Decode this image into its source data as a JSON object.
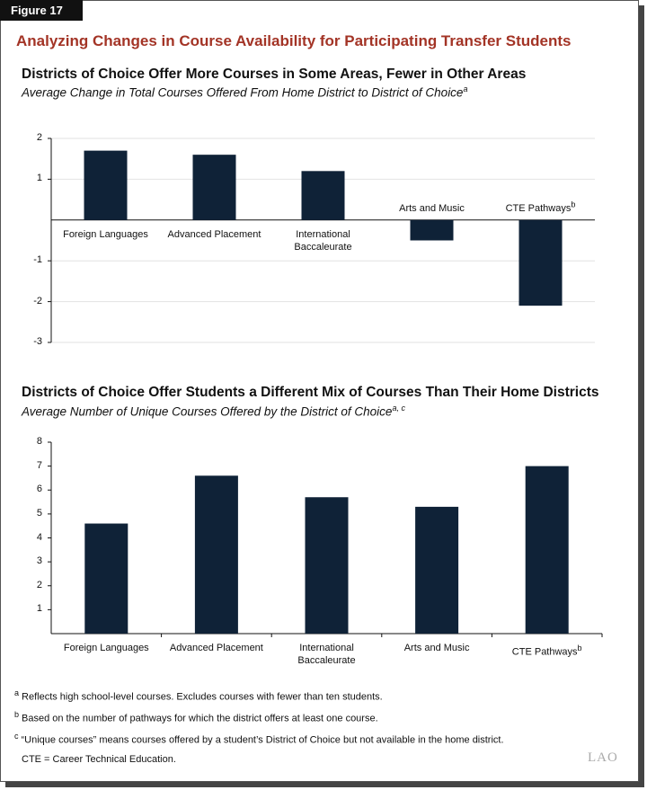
{
  "figure_label": "Figure 17",
  "title": "Analyzing Changes in Course Availability for Participating Transfer Students",
  "chart_data": [
    {
      "type": "bar",
      "title": "Districts of Choice Offer More Courses in Some Areas, Fewer in Other Areas",
      "subtitle": "Average Change in Total Courses Offered From Home District to District of Choice",
      "subtitle_note": "a",
      "categories": [
        "Foreign Languages",
        "Advanced Placement",
        "International Baccaleurate",
        "Arts and Music",
        "CTE Pathways"
      ],
      "category_notes": [
        null,
        null,
        null,
        null,
        "b"
      ],
      "values": [
        1.7,
        1.6,
        1.2,
        -0.5,
        -2.1
      ],
      "color": "#0f2237",
      "ylim": [
        -3,
        2
      ],
      "yticks": [
        -3,
        -2,
        -1,
        1,
        2
      ],
      "grid": true
    },
    {
      "type": "bar",
      "title": "Districts of Choice Offer Students a Different Mix of Courses Than Their Home Districts",
      "subtitle": "Average Number of Unique Courses Offered by the District of Choice",
      "subtitle_note": "a, c",
      "categories": [
        "Foreign Languages",
        "Advanced Placement",
        "International Baccaleurate",
        "Arts and Music",
        "CTE Pathways"
      ],
      "category_notes": [
        null,
        null,
        null,
        null,
        "b"
      ],
      "values": [
        4.6,
        6.6,
        5.7,
        5.3,
        7.0
      ],
      "color": "#0f2237",
      "ylim": [
        0,
        8
      ],
      "yticks": [
        1,
        2,
        3,
        4,
        5,
        6,
        7,
        8
      ],
      "grid": false
    }
  ],
  "footnotes": [
    {
      "marker": "a",
      "text": "Reflects high school-level courses. Excludes courses with fewer than ten students."
    },
    {
      "marker": "b",
      "text": "Based on the number of pathways for which the district offers at least one course."
    },
    {
      "marker": "c",
      "text": "“Unique courses” means courses offered by a student’s District of Choice but not available in the home district."
    }
  ],
  "note": "CTE = Career Technical Education.",
  "logo": "LAO"
}
